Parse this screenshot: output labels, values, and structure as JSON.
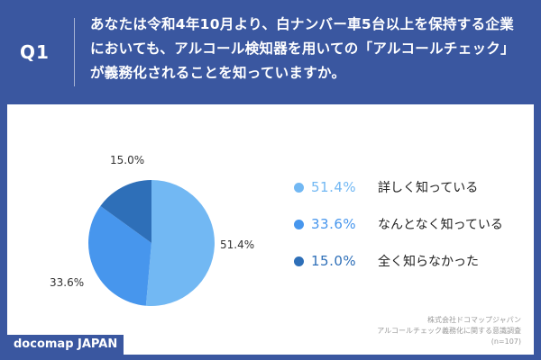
{
  "header": {
    "question_label": "Q1",
    "question_text": "あなたは令和4年10月より、白ナンバー車5台以上を保持する企業においても、アルコール検知器を用いての「アルコールチェック」が義務化されることを知っていますか。"
  },
  "chart_data": {
    "type": "pie",
    "unit": "%",
    "categories": [
      "詳しく知っている",
      "なんとなく知っている",
      "全く知らなかった"
    ],
    "values": [
      51.4,
      33.6,
      15.0
    ],
    "value_labels": [
      "51.4%",
      "33.6%",
      "15.0%"
    ],
    "colors": [
      "#72b8f3",
      "#4796ed",
      "#2e6fb8"
    ],
    "start_angle": "12 o'clock",
    "direction": "clockwise",
    "legend_position": "right"
  },
  "source": {
    "line1": "株式会社ドコマップジャパン",
    "line2": "アルコールチェック義務化に関する意識調査",
    "line3": "(n=107)"
  },
  "brand": "docomap JAPAN"
}
